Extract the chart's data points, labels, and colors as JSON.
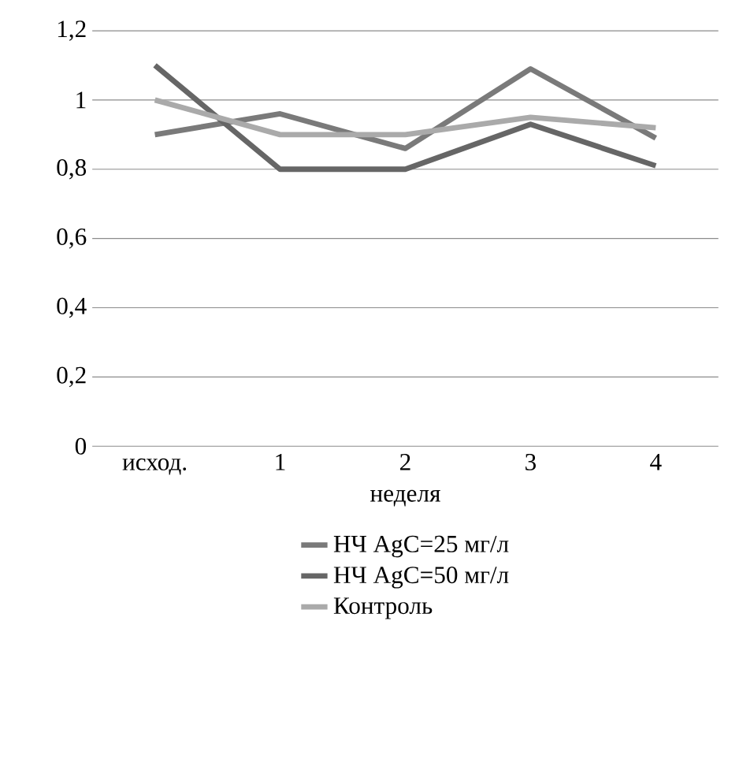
{
  "chart_data": {
    "type": "line",
    "xlabel": "неделя",
    "categories": [
      "исход.",
      "1",
      "2",
      "3",
      "4"
    ],
    "series": [
      {
        "name": "НЧ  AgC=25 мг/л",
        "color": "#7a7a7a",
        "values": [
          0.9,
          0.96,
          0.86,
          1.09,
          0.89
        ]
      },
      {
        "name": "НЧ  AgC=50 мг/л",
        "color": "#666666",
        "values": [
          1.1,
          0.8,
          0.8,
          0.93,
          0.81
        ]
      },
      {
        "name": "Контроль",
        "color": "#aaaaaa",
        "values": [
          1.0,
          0.9,
          0.9,
          0.95,
          0.92
        ]
      }
    ],
    "ylim": [
      0,
      1.2
    ],
    "yticks": [
      {
        "value": 0,
        "label": "0"
      },
      {
        "value": 0.2,
        "label": "0,2"
      },
      {
        "value": 0.4,
        "label": "0,4"
      },
      {
        "value": 0.6,
        "label": "0,6"
      },
      {
        "value": 0.8,
        "label": "0,8"
      },
      {
        "value": 1,
        "label": "1"
      },
      {
        "value": 1.2,
        "label": "1,2"
      }
    ],
    "grid": "y",
    "legend": "bottom",
    "marker": "none",
    "line_style": "solid"
  }
}
